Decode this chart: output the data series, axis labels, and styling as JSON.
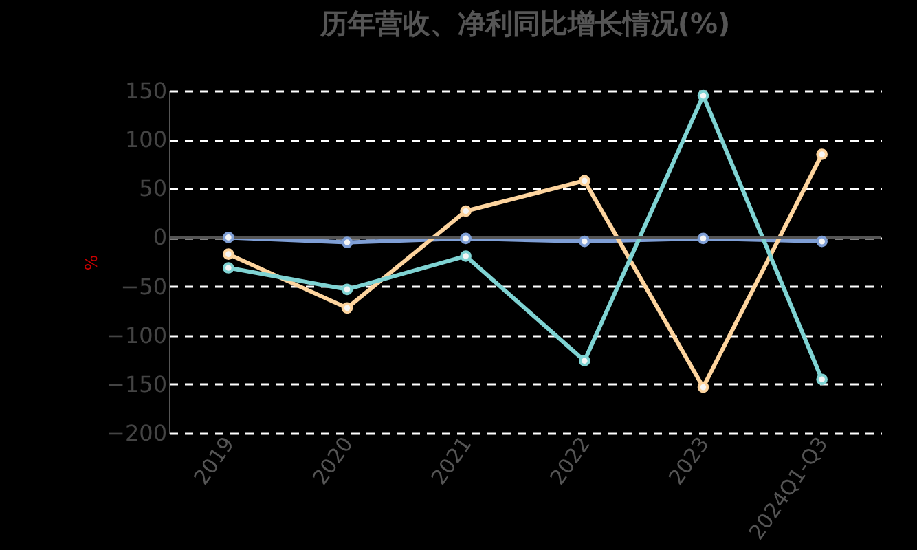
{
  "chart_data": {
    "type": "line",
    "title": "历年营收、净利同比增长情况(%)",
    "ylabel": "%",
    "categories": [
      "2019",
      "2020",
      "2021",
      "2022",
      "2023",
      "2024Q1-Q3"
    ],
    "series": [
      {
        "color": "#7f9fd6",
        "values": [
          0,
          -5,
          -1,
          -4,
          -1,
          -4
        ]
      },
      {
        "color": "#fdd49e",
        "values": [
          -17,
          -72,
          27,
          58,
          -153,
          85
        ]
      },
      {
        "color": "#7fd3d3",
        "values": [
          -31,
          -53,
          -19,
          -126,
          145,
          -145
        ]
      }
    ],
    "ylim": [
      -200,
      150
    ],
    "yticks": [
      -200,
      -150,
      -100,
      -50,
      0,
      50,
      100,
      150
    ],
    "ref_lines": [
      {
        "axis": "y",
        "value": 0,
        "color": "#555555"
      }
    ],
    "grid": "y",
    "marker": "circle",
    "line_style": "solid",
    "legend": false
  }
}
